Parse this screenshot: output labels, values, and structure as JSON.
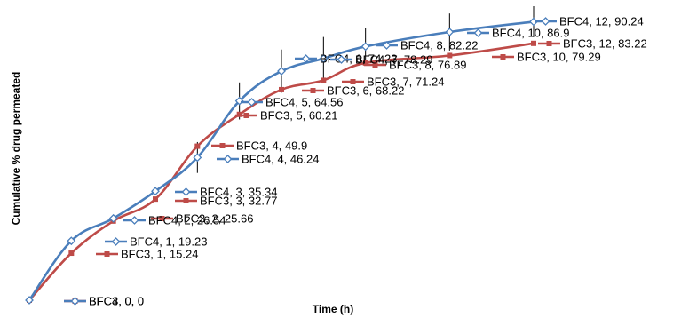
{
  "chart_data": {
    "type": "line",
    "title": "",
    "xlabel": "Time (h)",
    "ylabel": "Cumulative % drug permeated",
    "x": [
      0,
      1,
      2,
      3,
      4,
      5,
      6,
      7,
      8,
      10,
      12
    ],
    "xlim": [
      0,
      12
    ],
    "ylim": [
      0,
      95
    ],
    "grid": false,
    "legend": "none",
    "series": [
      {
        "name": "BFC4",
        "color": "#4a7ebb",
        "marker": "diamond",
        "values": [
          0,
          19.23,
          26.54,
          35.34,
          46.24,
          64.56,
          74.23,
          78.29,
          82.22,
          86.9,
          90.24
        ],
        "labels": [
          "BFC4, 0, 0",
          "BFC4, 1, 19.23",
          "BFC4, 2, 26.54",
          "BFC4, 3, 35.34",
          "BFC4, 4, 46.24",
          "BFC4, 5, 64.56",
          "BFC4, 6, 74.23",
          "BFC4, 7, 78.29",
          "BFC4, 8, 82.22",
          "BFC4, 10, 86.9",
          "BFC4, 12, 90.24"
        ]
      },
      {
        "name": "BFC3",
        "color": "#be4b48",
        "marker": "square",
        "values": [
          0,
          15.24,
          25.66,
          32.77,
          49.9,
          60.21,
          68.22,
          71.24,
          76.89,
          79.29,
          83.22
        ],
        "labels": [
          "BFC3, 0, 0",
          "BFC3, 1, 15.24",
          "BFC3, 2, 25.66",
          "BFC3, 3, 32.77",
          "BFC3, 4, 49.9",
          "BFC3, 5, 60.21",
          "BFC3, 6, 68.22",
          "BFC3, 7, 71.24",
          "BFC3, 8, 76.89",
          "BFC3, 10, 79.29",
          "BFC3, 12, 83.22"
        ]
      }
    ],
    "error_bars": [
      0,
      0,
      0,
      0,
      5,
      6,
      7,
      7,
      6,
      6,
      5
    ]
  }
}
